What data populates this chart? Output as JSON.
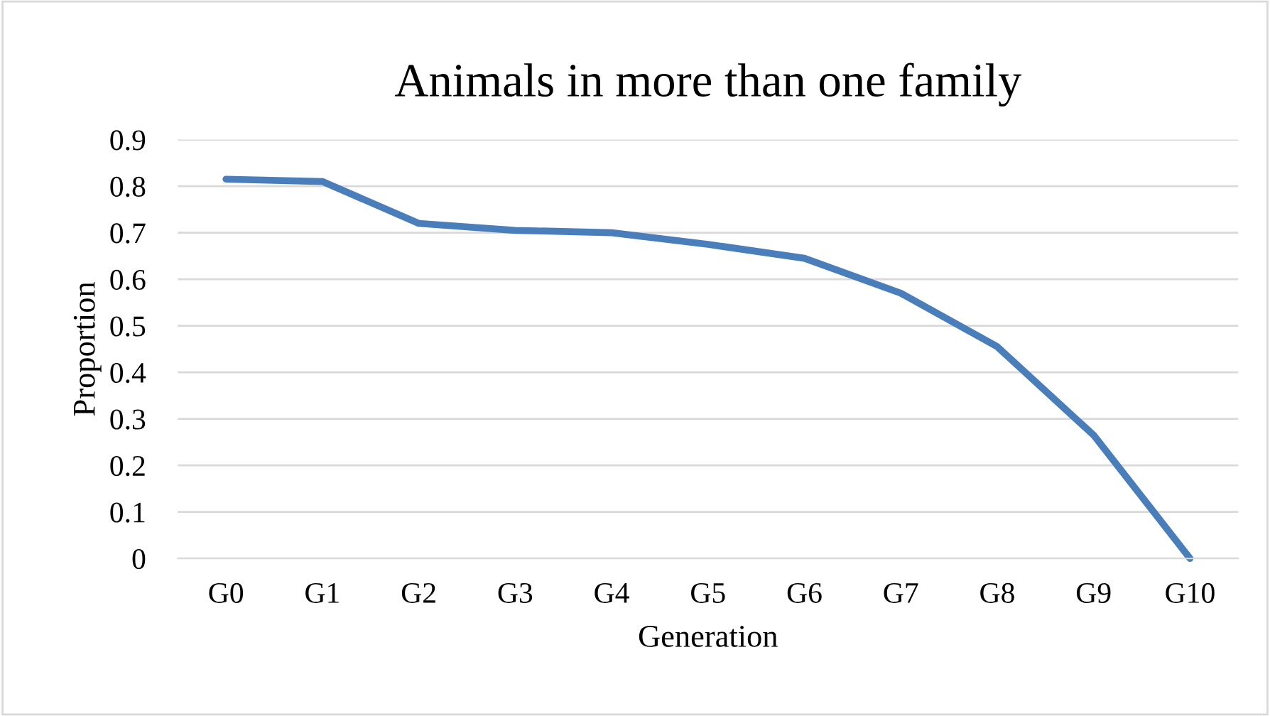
{
  "chart_data": {
    "type": "line",
    "title": "Animals in more than one family",
    "xlabel": "Generation",
    "ylabel": "Proportion",
    "categories": [
      "G0",
      "G1",
      "G2",
      "G3",
      "G4",
      "G5",
      "G6",
      "G7",
      "G8",
      "G9",
      "G10"
    ],
    "series": [
      {
        "color": "#4a7ebb",
        "values": [
          0.815,
          0.81,
          0.72,
          0.705,
          0.7,
          0.675,
          0.645,
          0.57,
          0.455,
          0.265,
          0
        ]
      }
    ],
    "ylim": [
      0,
      0.9
    ],
    "yticks": [
      0,
      0.1,
      0.2,
      0.3,
      0.4,
      0.5,
      0.6,
      0.7,
      0.8,
      0.9
    ],
    "grid": "y",
    "line_style": "solid"
  }
}
